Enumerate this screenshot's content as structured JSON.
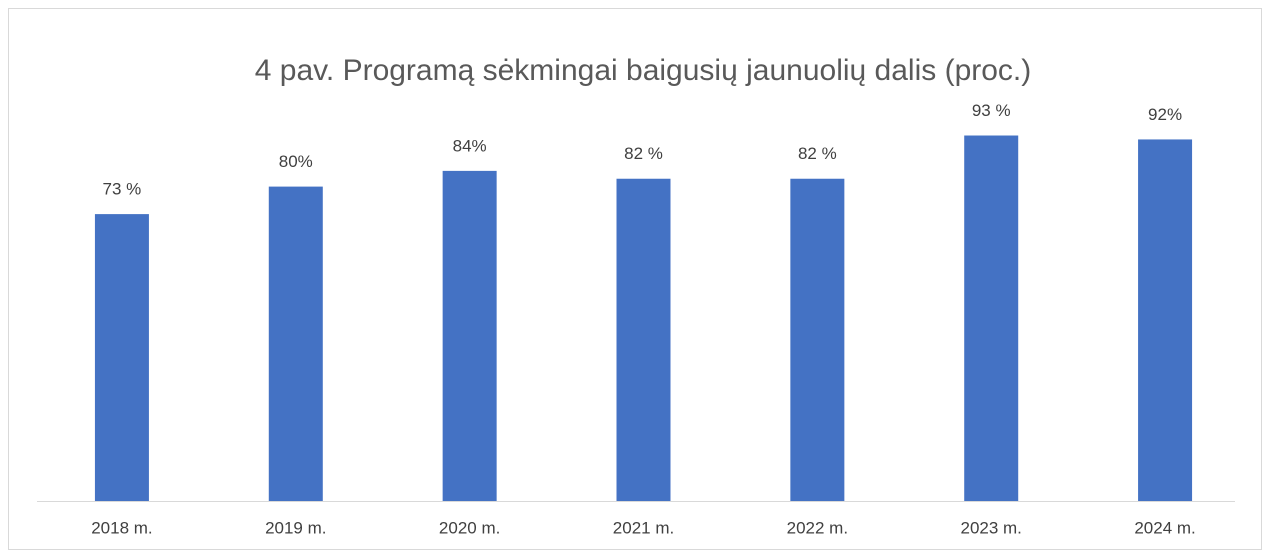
{
  "chart_data": {
    "type": "bar",
    "title": "4 pav. Programą sėkmingai baigusių jaunuolių dalis (proc.)",
    "categories": [
      "2018 m.",
      "2019 m.",
      "2020 m.",
      "2021 m.",
      "2022 m.",
      "2023 m.",
      "2024 m."
    ],
    "values": [
      73,
      80,
      84,
      82,
      82,
      93,
      92
    ],
    "value_labels": [
      "73 %",
      "80%",
      "84%",
      "82 %",
      "82 %",
      "93 %",
      "92%"
    ],
    "color": "#4472c4",
    "ylim": [
      0,
      100
    ]
  }
}
